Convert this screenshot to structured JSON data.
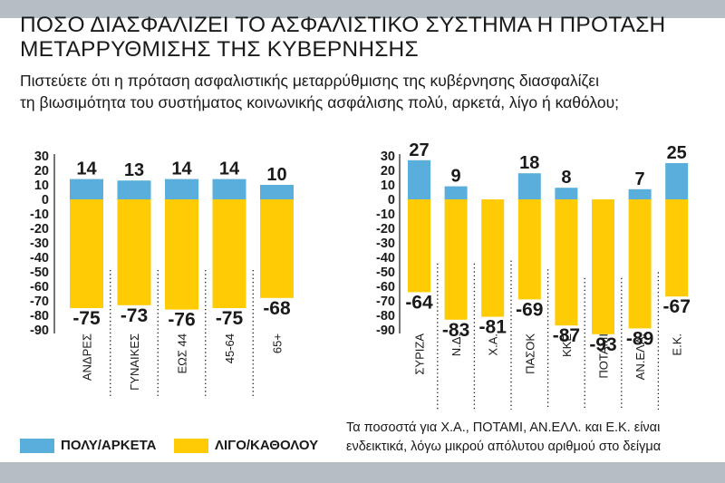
{
  "title": "ΠΟΣΟ ΔΙΑΣΦΑΛΙΖΕΙ ΤΟ ΑΣΦΑΛΙΣΤΙΚΟ ΣΥΣΤΗΜΑ Η ΠΡΟΤΑΣΗ\nΜΕΤΑΡΡΥΘΜΙΣΗΣ ΤΗΣ ΚΥΒΕΡΝΗΣΗΣ",
  "subtitle": "Πιστεύετε ότι η πρόταση ασφαλιστικής μεταρρύθμισης της κυβέρνησης διασφαλίζει\nτη βιωσιμότητα του συστήματος κοινωνικής ασφάλισης πολύ, αρκετά, λίγο ή καθόλου;",
  "legend": [
    {
      "label": "ΠΟΛΥ/ΑΡΚΕΤΑ",
      "color": "#5aaedb"
    },
    {
      "label": "ΛΙΓΟ/ΚΑΘΟΛΟΥ",
      "color": "#ffcb05"
    }
  ],
  "note": "Τα ποσοστά για Χ.Α., ΠΟΤΑΜΙ, ΑΝ.ΕΛΛ. και Ε.Κ. είναι\nενδεικτικά, λόγω μικρού απόλυτου αριθμού στο δείγμα",
  "chart_data": [
    {
      "type": "bar",
      "categories": [
        "ΑΝΔΡΕΣ",
        "ΓΥΝΑΙΚΕΣ",
        "ΕΩΣ 44",
        "45-64",
        "65+"
      ],
      "series": [
        {
          "name": "ΠΟΛΥ/ΑΡΚΕΤΑ",
          "values": [
            14,
            13,
            14,
            14,
            10
          ]
        },
        {
          "name": "ΛΙΓΟ/ΚΑΘΟΛΟΥ",
          "values": [
            -75,
            -73,
            -76,
            -75,
            -68
          ]
        }
      ],
      "ylim": [
        -90,
        30
      ],
      "yticks": [
        30,
        20,
        10,
        0,
        -10,
        -20,
        -30,
        -40,
        -50,
        -60,
        -70,
        -80,
        -90
      ]
    },
    {
      "type": "bar",
      "categories": [
        "ΣΥΡΙΖΑ",
        "Ν.Δ.",
        "Χ.Α.",
        "ΠΑΣΟΚ",
        "ΚΚΕ",
        "ΠΟΤΑΜΙ",
        "ΑΝ.ΕΛΛ.",
        "Ε.Κ."
      ],
      "series": [
        {
          "name": "ΠΟΛΥ/ΑΡΚΕΤΑ",
          "values": [
            27,
            9,
            null,
            18,
            8,
            null,
            7,
            25
          ]
        },
        {
          "name": "ΛΙΓΟ/ΚΑΘΟΛΟΥ",
          "values": [
            -64,
            -83,
            -81,
            -69,
            -87,
            -93,
            -89,
            -67
          ]
        }
      ],
      "ylim": [
        -90,
        30
      ],
      "yticks": [
        30,
        20,
        10,
        0,
        -10,
        -20,
        -30,
        -40,
        -50,
        -60,
        -70,
        -80,
        -90
      ]
    }
  ]
}
